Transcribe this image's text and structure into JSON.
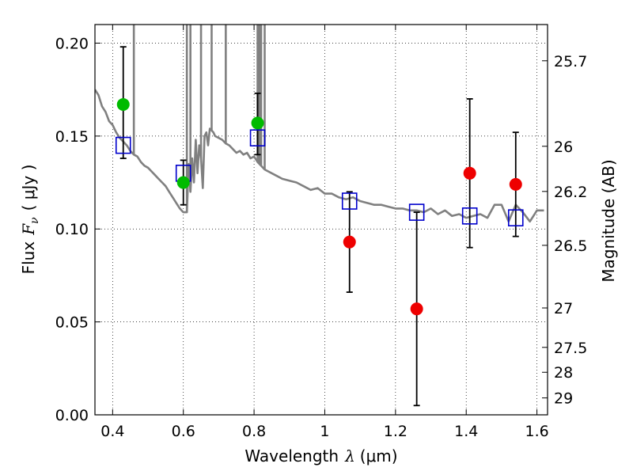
{
  "chart_data": {
    "type": "scatter",
    "xlabel": {
      "prefix": "Wavelength",
      "symbol": "λ",
      "unit": "(μm)"
    },
    "ylabel": {
      "prefix": "Flux",
      "symbol": "F",
      "subscript": "ν",
      "unit": "( μJy )"
    },
    "y2label": "Magnitude (AB)",
    "xlim": [
      0.35,
      1.63
    ],
    "ylim": [
      0.0,
      0.21
    ],
    "grid": true,
    "x_ticks": [
      0.4,
      0.6,
      0.8,
      1.0,
      1.2,
      1.4,
      1.6
    ],
    "x_tick_labels": [
      "0.4",
      "0.6",
      "0.8",
      "1",
      "1.2",
      "1.4",
      "1.6"
    ],
    "y_ticks": [
      0.0,
      0.05,
      0.1,
      0.15,
      0.2
    ],
    "y_tick_labels": [
      "0.00",
      "0.05",
      "0.10",
      "0.15",
      "0.20"
    ],
    "y2_ticks": [
      {
        "label": "25.7",
        "flux": 0.1905
      },
      {
        "label": "26",
        "flux": 0.1445
      },
      {
        "label": "26.2",
        "flux": 0.1202
      },
      {
        "label": "26.5",
        "flux": 0.0912
      },
      {
        "label": "27",
        "flux": 0.0575
      },
      {
        "label": "27.5",
        "flux": 0.0363
      },
      {
        "label": "28",
        "flux": 0.0229
      },
      {
        "label": "29",
        "flux": 0.0091
      }
    ],
    "colors": {
      "model": "#808080",
      "green": "#00bb00",
      "red": "#ee0000",
      "box": "#0000cc",
      "errorbar": "#000000"
    },
    "series": [
      {
        "kind": "model-spectrum",
        "x": [
          0.35,
          0.36,
          0.37,
          0.38,
          0.39,
          0.4,
          0.41,
          0.42,
          0.43,
          0.44,
          0.45,
          0.46,
          0.47,
          0.48,
          0.49,
          0.5,
          0.51,
          0.52,
          0.53,
          0.54,
          0.55,
          0.56,
          0.57,
          0.58,
          0.59,
          0.6,
          0.61,
          0.615,
          0.62,
          0.625,
          0.63,
          0.635,
          0.64,
          0.645,
          0.65,
          0.655,
          0.66,
          0.665,
          0.67,
          0.675,
          0.68,
          0.685,
          0.69,
          0.7,
          0.71,
          0.72,
          0.73,
          0.74,
          0.75,
          0.76,
          0.77,
          0.78,
          0.79,
          0.8,
          0.81,
          0.82,
          0.83,
          0.84,
          0.86,
          0.88,
          0.9,
          0.92,
          0.94,
          0.96,
          0.98,
          1.0,
          1.02,
          1.04,
          1.06,
          1.08,
          1.1,
          1.12,
          1.14,
          1.16,
          1.18,
          1.2,
          1.22,
          1.24,
          1.26,
          1.28,
          1.3,
          1.32,
          1.34,
          1.36,
          1.38,
          1.4,
          1.42,
          1.44,
          1.46,
          1.48,
          1.5,
          1.52,
          1.54,
          1.56,
          1.58,
          1.6,
          1.62
        ],
        "y": [
          0.175,
          0.172,
          0.166,
          0.163,
          0.158,
          0.156,
          0.152,
          0.149,
          0.147,
          0.145,
          0.142,
          0.14,
          0.139,
          0.136,
          0.134,
          0.133,
          0.131,
          0.129,
          0.127,
          0.125,
          0.123,
          0.12,
          0.117,
          0.114,
          0.111,
          0.109,
          0.109,
          0.135,
          0.12,
          0.138,
          0.125,
          0.148,
          0.13,
          0.145,
          0.138,
          0.122,
          0.15,
          0.152,
          0.145,
          0.154,
          0.153,
          0.152,
          0.15,
          0.149,
          0.148,
          0.146,
          0.145,
          0.143,
          0.141,
          0.142,
          0.14,
          0.141,
          0.138,
          0.139,
          0.136,
          0.134,
          0.132,
          0.131,
          0.129,
          0.127,
          0.126,
          0.125,
          0.123,
          0.121,
          0.122,
          0.119,
          0.119,
          0.117,
          0.116,
          0.117,
          0.115,
          0.114,
          0.113,
          0.113,
          0.112,
          0.111,
          0.111,
          0.11,
          0.11,
          0.109,
          0.111,
          0.108,
          0.11,
          0.107,
          0.108,
          0.106,
          0.107,
          0.108,
          0.106,
          0.113,
          0.113,
          0.104,
          0.113,
          0.109,
          0.104,
          0.11,
          0.11
        ]
      },
      {
        "kind": "spikes",
        "x": [
          0.46,
          0.61,
          0.62,
          0.65,
          0.68,
          0.72,
          0.81,
          0.815,
          0.82,
          0.83
        ]
      },
      {
        "kind": "model-photometry",
        "marker": "square",
        "x": [
          0.43,
          0.6,
          0.81,
          1.07,
          1.26,
          1.41,
          1.54
        ],
        "y": [
          0.145,
          0.13,
          0.149,
          0.115,
          0.109,
          0.107,
          0.106
        ]
      },
      {
        "kind": "observed",
        "marker": "circle",
        "points": [
          {
            "x": 0.43,
            "y": 0.167,
            "err_low": 0.138,
            "err_high": 0.198,
            "color": "green"
          },
          {
            "x": 0.6,
            "y": 0.125,
            "err_low": 0.113,
            "err_high": 0.137,
            "color": "green"
          },
          {
            "x": 0.81,
            "y": 0.157,
            "err_low": 0.14,
            "err_high": 0.173,
            "color": "green"
          },
          {
            "x": 1.07,
            "y": 0.093,
            "err_low": 0.066,
            "err_high": 0.12,
            "color": "red"
          },
          {
            "x": 1.26,
            "y": 0.057,
            "err_low": 0.005,
            "err_high": 0.109,
            "color": "red"
          },
          {
            "x": 1.41,
            "y": 0.13,
            "err_low": 0.09,
            "err_high": 0.17,
            "color": "red"
          },
          {
            "x": 1.54,
            "y": 0.124,
            "err_low": 0.096,
            "err_high": 0.152,
            "color": "red"
          }
        ]
      }
    ]
  }
}
